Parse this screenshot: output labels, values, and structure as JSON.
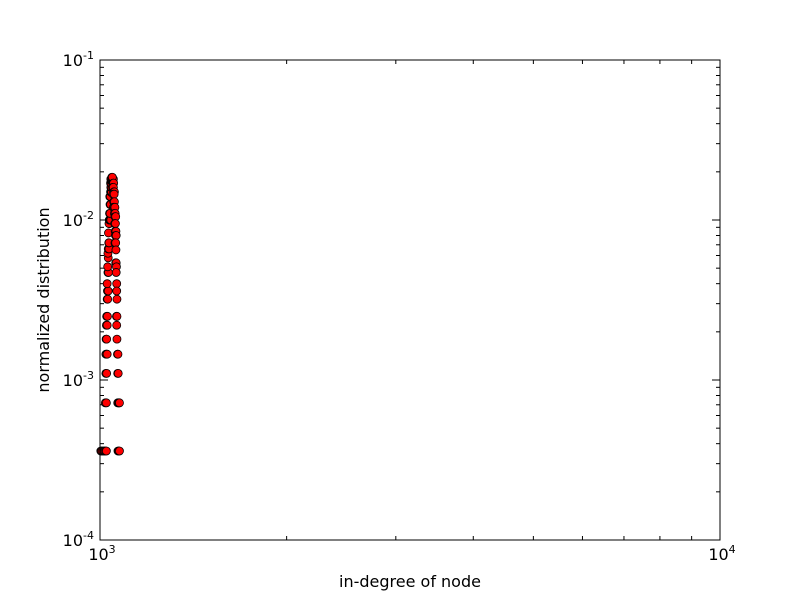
{
  "chart_data": {
    "type": "scatter",
    "xlabel": "in-degree of node",
    "ylabel": "normalized distribution",
    "xscale": "log",
    "yscale": "log",
    "xlim": [
      1000,
      10000
    ],
    "ylim": [
      0.0001,
      0.1
    ],
    "grid": false,
    "legend": "none",
    "x_ticks": [
      {
        "base": "10",
        "exp": "3"
      },
      {
        "base": "10",
        "exp": "4"
      }
    ],
    "y_ticks": [
      {
        "base": "10",
        "exp": "-4"
      },
      {
        "base": "10",
        "exp": "-3"
      },
      {
        "base": "10",
        "exp": "-2"
      },
      {
        "base": "10",
        "exp": "-1"
      }
    ],
    "marker_color": "#ff0000",
    "marker_edge_color": "#000000",
    "points": [
      [
        1003,
        0.00036
      ],
      [
        1006,
        0.00036
      ],
      [
        1010,
        0.00036
      ],
      [
        1014,
        0.00036
      ],
      [
        1017,
        0.00036
      ],
      [
        1021,
        0.00036
      ],
      [
        1024,
        0.00036
      ],
      [
        1020,
        0.00072
      ],
      [
        1024,
        0.00072
      ],
      [
        1022,
        0.0011
      ],
      [
        1025,
        0.0011
      ],
      [
        1022,
        0.00145
      ],
      [
        1025,
        0.00145
      ],
      [
        1027,
        0.00145
      ],
      [
        1023,
        0.0018
      ],
      [
        1025,
        0.0018
      ],
      [
        1024,
        0.0022
      ],
      [
        1027,
        0.0022
      ],
      [
        1025,
        0.0025
      ],
      [
        1028,
        0.0025
      ],
      [
        1027,
        0.0032
      ],
      [
        1029,
        0.0032
      ],
      [
        1028,
        0.0036
      ],
      [
        1031,
        0.0036
      ],
      [
        1027,
        0.004
      ],
      [
        1030,
        0.0047
      ],
      [
        1032,
        0.0047
      ],
      [
        1029,
        0.0051
      ],
      [
        1031,
        0.0058
      ],
      [
        1030,
        0.0062
      ],
      [
        1031,
        0.0066
      ],
      [
        1034,
        0.0066
      ],
      [
        1033,
        0.0072
      ],
      [
        1034,
        0.0072
      ],
      [
        1032,
        0.0083
      ],
      [
        1036,
        0.0095
      ],
      [
        1034,
        0.0095
      ],
      [
        1035,
        0.01
      ],
      [
        1037,
        0.01
      ],
      [
        1039,
        0.01
      ],
      [
        1041,
        0.01
      ],
      [
        1036,
        0.011
      ],
      [
        1038,
        0.011
      ],
      [
        1038,
        0.0125
      ],
      [
        1040,
        0.0125
      ],
      [
        1037,
        0.014
      ],
      [
        1039,
        0.014
      ],
      [
        1040,
        0.015
      ],
      [
        1042,
        0.015
      ],
      [
        1044,
        0.015
      ],
      [
        1041,
        0.016
      ],
      [
        1043,
        0.016
      ],
      [
        1040,
        0.017
      ],
      [
        1042,
        0.017
      ],
      [
        1043,
        0.0175
      ],
      [
        1046,
        0.0175
      ],
      [
        1041,
        0.018
      ],
      [
        1044,
        0.018
      ],
      [
        1046,
        0.018
      ],
      [
        1049,
        0.018
      ],
      [
        1051,
        0.018
      ],
      [
        1045,
        0.0185
      ],
      [
        1047,
        0.0185
      ],
      [
        1050,
        0.017
      ],
      [
        1052,
        0.017
      ],
      [
        1048,
        0.016
      ],
      [
        1051,
        0.016
      ],
      [
        1053,
        0.015
      ],
      [
        1055,
        0.015
      ],
      [
        1050,
        0.0145
      ],
      [
        1054,
        0.0145
      ],
      [
        1052,
        0.013
      ],
      [
        1055,
        0.013
      ],
      [
        1051,
        0.012
      ],
      [
        1054,
        0.012
      ],
      [
        1057,
        0.012
      ],
      [
        1055,
        0.011
      ],
      [
        1058,
        0.011
      ],
      [
        1057,
        0.0105
      ],
      [
        1060,
        0.0105
      ],
      [
        1056,
        0.0095
      ],
      [
        1059,
        0.0095
      ],
      [
        1058,
        0.0085
      ],
      [
        1061,
        0.0085
      ],
      [
        1059,
        0.008
      ],
      [
        1062,
        0.008
      ],
      [
        1057,
        0.0072
      ],
      [
        1060,
        0.0072
      ],
      [
        1061,
        0.0065
      ],
      [
        1060,
        0.0054
      ],
      [
        1062,
        0.0054
      ],
      [
        1063,
        0.0051
      ],
      [
        1062,
        0.0047
      ],
      [
        1064,
        0.004
      ],
      [
        1064,
        0.0036
      ],
      [
        1065,
        0.0032
      ],
      [
        1063,
        0.0025
      ],
      [
        1065,
        0.0025
      ],
      [
        1064,
        0.0022
      ],
      [
        1065,
        0.0018
      ],
      [
        1067,
        0.00145
      ],
      [
        1069,
        0.00145
      ],
      [
        1068,
        0.0011
      ],
      [
        1070,
        0.0011
      ],
      [
        1068,
        0.00072
      ],
      [
        1071,
        0.00072
      ],
      [
        1073,
        0.00072
      ],
      [
        1075,
        0.00072
      ],
      [
        1069,
        0.00036
      ],
      [
        1072,
        0.00036
      ],
      [
        1075,
        0.00036
      ]
    ]
  }
}
